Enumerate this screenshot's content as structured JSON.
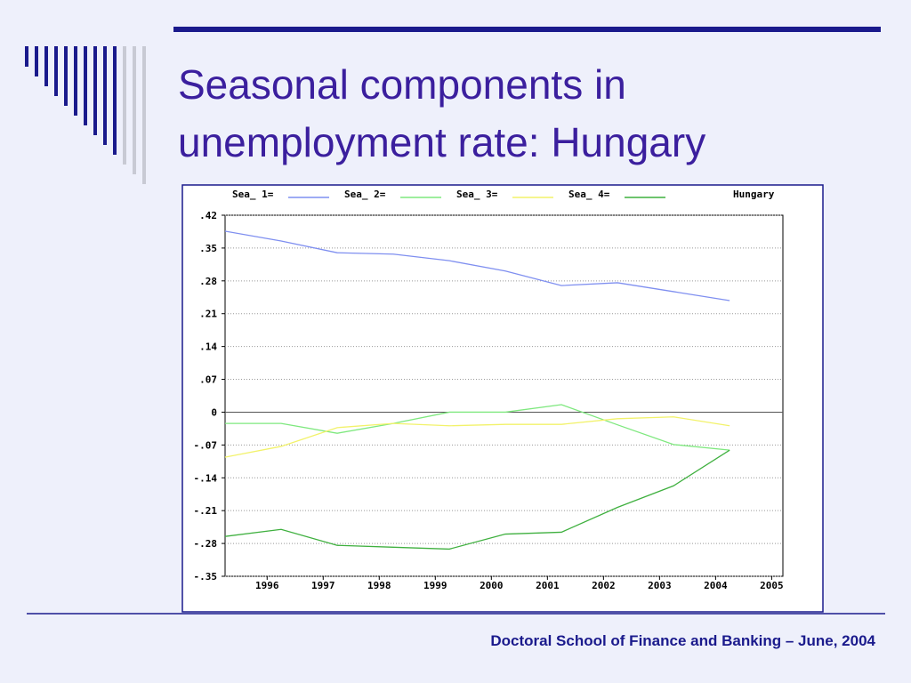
{
  "slide": {
    "title": [
      "Seasonal components in",
      "unemployment rate: Hungary"
    ],
    "footer": "Doctoral School of Finance and Banking – June, 2004"
  },
  "chart_data": {
    "type": "line",
    "title": "Hungary",
    "x": [
      1995.25,
      1996.25,
      1997.25,
      1998.25,
      1999.25,
      2000.25,
      2001.25,
      2002.25,
      2003.25,
      2004.25
    ],
    "series": [
      {
        "name": "Sea_ 1=",
        "color": "#7f8ff0",
        "values": [
          0.386,
          0.365,
          0.34,
          0.337,
          0.323,
          0.301,
          0.27,
          0.276,
          0.257,
          0.238
        ]
      },
      {
        "name": "Sea_ 2=",
        "color": "#7ee87e",
        "values": [
          -0.024,
          -0.024,
          -0.045,
          -0.024,
          0,
          0,
          0.016,
          -0.027,
          -0.069,
          -0.081
        ]
      },
      {
        "name": "Sea_ 3=",
        "color": "#f2f26a",
        "values": [
          -0.096,
          -0.073,
          -0.033,
          -0.024,
          -0.029,
          -0.026,
          -0.026,
          -0.014,
          -0.01,
          -0.029
        ]
      },
      {
        "name": "Sea_ 4=",
        "color": "#3fb03f",
        "values": [
          -0.265,
          -0.25,
          -0.284,
          -0.288,
          -0.292,
          -0.26,
          -0.256,
          -0.203,
          -0.157,
          -0.081
        ]
      }
    ],
    "xlim": [
      1995.25,
      2005.2
    ],
    "xticks": [
      1996,
      1997,
      1998,
      1999,
      2000,
      2001,
      2002,
      2003,
      2004,
      2005
    ],
    "ylim": [
      -0.35,
      0.42
    ],
    "yticks": [
      {
        "value": -0.35,
        "label": "-.35"
      },
      {
        "value": -0.28,
        "label": "-.28"
      },
      {
        "value": -0.21,
        "label": "-.21"
      },
      {
        "value": -0.14,
        "label": "-.14"
      },
      {
        "value": -0.07,
        "label": "-.07"
      },
      0,
      {
        "value": 0.07,
        "label": ".07"
      },
      {
        "value": 0.14,
        "label": ".14"
      },
      {
        "value": 0.21,
        "label": ".21"
      },
      {
        "value": 0.28,
        "label": ".28"
      },
      {
        "value": 0.35,
        "label": ".35"
      },
      {
        "value": 0.42,
        "label": ".42"
      }
    ],
    "grid": true
  }
}
